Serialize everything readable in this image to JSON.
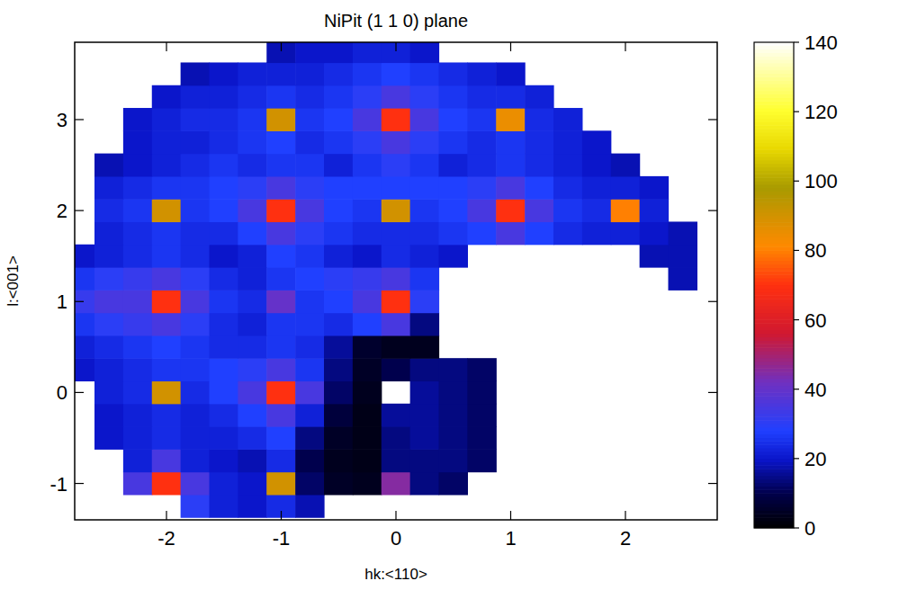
{
  "chart_data": {
    "type": "heatmap",
    "title": "NiPit (1 1 0) plane",
    "x_label": "hk:<110>",
    "y_label": "l:<001>",
    "x": [
      -2.75,
      -2.5,
      -2.25,
      -2,
      -1.75,
      -1.5,
      -1.25,
      -1,
      -0.75,
      -0.5,
      -0.25,
      0,
      0.25,
      0.5,
      0.75,
      1,
      1.25,
      1.5,
      1.75,
      2,
      2.25,
      2.5
    ],
    "y": [
      -1.25,
      -1,
      -0.75,
      -0.5,
      -0.25,
      0,
      0.25,
      0.5,
      0.75,
      1,
      1.25,
      1.5,
      1.75,
      2,
      2.25,
      2.5,
      2.75,
      3,
      3.25,
      3.5,
      3.75
    ],
    "z": [
      [
        null,
        null,
        null,
        null,
        30,
        22,
        20,
        24,
        18,
        null,
        null,
        null,
        null,
        null,
        null,
        null,
        null,
        null,
        null,
        null,
        null,
        null
      ],
      [
        null,
        null,
        35,
        70,
        35,
        22,
        20,
        90,
        12,
        5,
        4,
        45,
        14,
        12,
        null,
        null,
        null,
        null,
        null,
        null,
        null,
        null
      ],
      [
        null,
        null,
        22,
        35,
        22,
        20,
        18,
        24,
        10,
        4,
        3,
        14,
        14,
        14,
        12,
        null,
        null,
        null,
        null,
        null,
        null,
        null
      ],
      [
        null,
        20,
        22,
        24,
        22,
        22,
        24,
        28,
        14,
        5,
        3,
        14,
        16,
        14,
        12,
        null,
        null,
        null,
        null,
        null,
        null,
        null
      ],
      [
        null,
        20,
        22,
        24,
        22,
        24,
        28,
        35,
        22,
        8,
        3,
        16,
        16,
        14,
        12,
        null,
        null,
        null,
        null,
        null,
        null,
        null
      ],
      [
        null,
        22,
        24,
        90,
        24,
        28,
        35,
        70,
        35,
        12,
        4,
        null,
        16,
        14,
        12,
        null,
        null,
        null,
        null,
        null,
        null,
        null
      ],
      [
        20,
        22,
        24,
        26,
        26,
        28,
        30,
        35,
        26,
        14,
        5,
        10,
        14,
        14,
        12,
        null,
        null,
        null,
        null,
        null,
        null,
        null
      ],
      [
        22,
        24,
        26,
        28,
        26,
        24,
        24,
        26,
        24,
        16,
        6,
        4,
        4,
        null,
        null,
        null,
        null,
        null,
        null,
        null,
        null,
        null
      ],
      [
        26,
        30,
        32,
        35,
        30,
        24,
        22,
        26,
        26,
        24,
        28,
        35,
        14,
        null,
        null,
        null,
        null,
        null,
        null,
        null,
        null,
        null
      ],
      [
        32,
        35,
        35,
        70,
        35,
        26,
        24,
        40,
        26,
        28,
        35,
        70,
        30,
        null,
        null,
        null,
        null,
        null,
        null,
        null,
        null,
        null
      ],
      [
        26,
        30,
        32,
        35,
        30,
        24,
        22,
        26,
        28,
        30,
        32,
        35,
        26,
        null,
        null,
        null,
        null,
        null,
        null,
        null,
        null,
        18
      ],
      [
        20,
        22,
        24,
        26,
        24,
        20,
        22,
        28,
        26,
        22,
        20,
        24,
        22,
        20,
        null,
        null,
        null,
        null,
        null,
        null,
        18,
        18
      ],
      [
        null,
        22,
        24,
        26,
        24,
        24,
        28,
        35,
        30,
        26,
        24,
        24,
        24,
        26,
        28,
        35,
        28,
        24,
        22,
        22,
        20,
        18
      ],
      [
        null,
        24,
        26,
        90,
        26,
        28,
        35,
        70,
        35,
        28,
        26,
        90,
        26,
        28,
        35,
        70,
        35,
        26,
        24,
        80,
        22,
        null
      ],
      [
        null,
        22,
        24,
        26,
        26,
        28,
        30,
        35,
        30,
        28,
        28,
        28,
        28,
        28,
        30,
        35,
        28,
        24,
        22,
        22,
        20,
        null
      ],
      [
        null,
        18,
        20,
        22,
        24,
        26,
        24,
        26,
        26,
        22,
        26,
        30,
        26,
        22,
        24,
        26,
        24,
        22,
        20,
        18,
        null,
        null
      ],
      [
        null,
        null,
        20,
        22,
        22,
        24,
        26,
        28,
        24,
        26,
        30,
        35,
        30,
        26,
        24,
        26,
        24,
        22,
        20,
        null,
        null,
        null
      ],
      [
        null,
        null,
        20,
        22,
        24,
        24,
        26,
        90,
        26,
        28,
        35,
        70,
        35,
        28,
        26,
        85,
        24,
        22,
        null,
        null,
        null,
        null
      ],
      [
        null,
        null,
        null,
        20,
        22,
        22,
        24,
        26,
        24,
        26,
        30,
        35,
        30,
        26,
        24,
        24,
        22,
        null,
        null,
        null,
        null,
        null
      ],
      [
        null,
        null,
        null,
        null,
        18,
        20,
        22,
        22,
        22,
        24,
        26,
        28,
        26,
        24,
        22,
        20,
        null,
        null,
        null,
        null,
        null,
        null
      ],
      [
        null,
        null,
        null,
        null,
        null,
        null,
        null,
        18,
        20,
        20,
        22,
        22,
        20,
        null,
        null,
        null,
        null,
        null,
        null,
        null,
        null,
        null
      ]
    ],
    "xlim": [
      -2.8,
      2.8
    ],
    "ylim": [
      -1.4,
      3.85
    ],
    "xticks": [
      -2,
      -1,
      0,
      1,
      2
    ],
    "yticks": [
      -1,
      0,
      1,
      2,
      3
    ],
    "colorbar": {
      "range": [
        0,
        140
      ],
      "ticks": [
        0,
        20,
        40,
        60,
        80,
        100,
        120,
        140
      ]
    }
  }
}
